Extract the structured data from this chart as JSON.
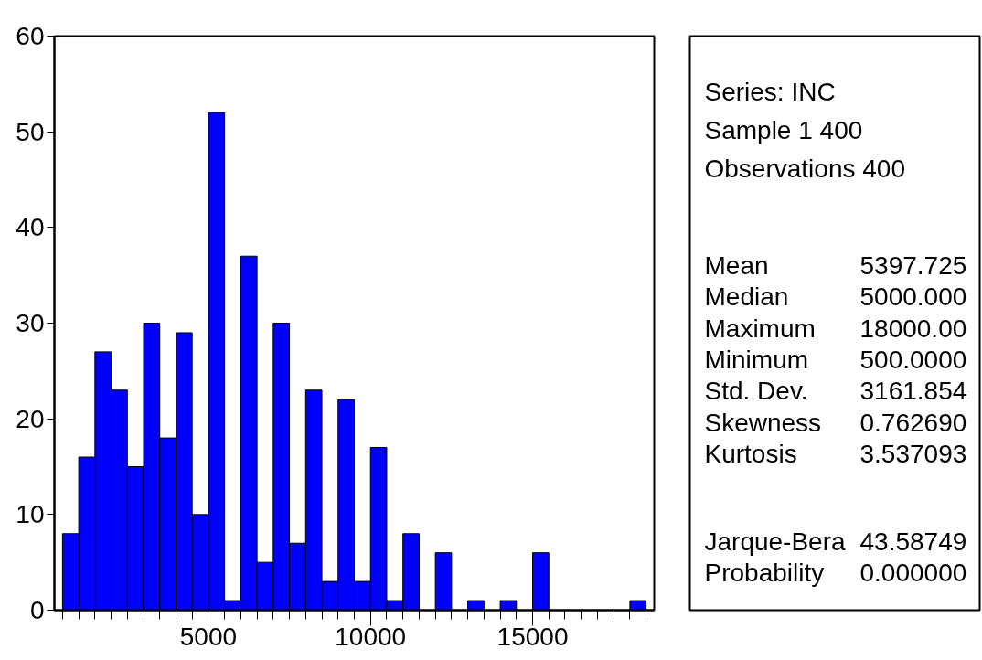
{
  "chart_data": [
    {
      "type": "histogram",
      "bins": [
        500,
        1000,
        1500,
        2000,
        2500,
        3000,
        3500,
        4000,
        4500,
        5000,
        5500,
        6000,
        6500,
        7000,
        7500,
        8000,
        8500,
        9000,
        9500,
        10000,
        10500,
        11000,
        11500,
        12000,
        12500,
        13000,
        13500,
        14000,
        14500,
        15000,
        15500,
        16000,
        16500,
        17000,
        17500,
        18000,
        18500
      ],
      "values": [
        8,
        16,
        27,
        23,
        15,
        30,
        18,
        29,
        10,
        52,
        1,
        37,
        5,
        30,
        7,
        23,
        3,
        22,
        3,
        17,
        1,
        8,
        0,
        6,
        0,
        1,
        0,
        1,
        0,
        6,
        0,
        0,
        0,
        0,
        0,
        1
      ],
      "color": "#0000ff",
      "xlim": [
        250,
        18750
      ],
      "xticks": [
        {
          "value": 500,
          "label": null
        },
        {
          "value": 1000,
          "label": null
        },
        {
          "value": 1500,
          "label": null
        },
        {
          "value": 2000,
          "label": null
        },
        {
          "value": 2500,
          "label": null
        },
        {
          "value": 3000,
          "label": null
        },
        {
          "value": 3500,
          "label": null
        },
        {
          "value": 4000,
          "label": null
        },
        {
          "value": 4500,
          "label": null
        },
        5000,
        {
          "value": 5500,
          "label": null
        },
        {
          "value": 6000,
          "label": null
        },
        {
          "value": 6500,
          "label": null
        },
        {
          "value": 7000,
          "label": null
        },
        {
          "value": 7500,
          "label": null
        },
        {
          "value": 8000,
          "label": null
        },
        {
          "value": 8500,
          "label": null
        },
        {
          "value": 9000,
          "label": null
        },
        {
          "value": 9500,
          "label": null
        },
        10000,
        {
          "value": 10500,
          "label": null
        },
        {
          "value": 11000,
          "label": null
        },
        {
          "value": 11500,
          "label": null
        },
        {
          "value": 12000,
          "label": null
        },
        {
          "value": 12500,
          "label": null
        },
        {
          "value": 13000,
          "label": null
        },
        {
          "value": 13500,
          "label": null
        },
        {
          "value": 14000,
          "label": null
        },
        {
          "value": 14500,
          "label": null
        },
        15000,
        {
          "value": 15500,
          "label": null
        },
        {
          "value": 16000,
          "label": null
        },
        {
          "value": 16500,
          "label": null
        },
        {
          "value": 17000,
          "label": null
        },
        {
          "value": 17500,
          "label": null
        },
        {
          "value": 18000,
          "label": null
        },
        {
          "value": 18500,
          "label": null
        }
      ],
      "ylim": [
        0,
        60
      ],
      "yticks": [
        0,
        10,
        20,
        30,
        40,
        50,
        60
      ]
    },
    {
      "type": "other",
      "annotations": [
        "Series: INC",
        "Sample 1 400",
        "Observations 400"
      ],
      "categories": [
        "Mean",
        "Median",
        "Maximum",
        "Minimum",
        "Std. Dev.",
        "Skewness",
        "Kurtosis",
        null,
        "Jarque-Bera",
        "Probability"
      ],
      "value_labels": [
        "5397.725",
        "5000.000",
        "18000.00",
        "500.0000",
        "3161.854",
        "0.762690",
        "3.537093",
        null,
        "43.58749",
        "0.000000"
      ]
    }
  ]
}
